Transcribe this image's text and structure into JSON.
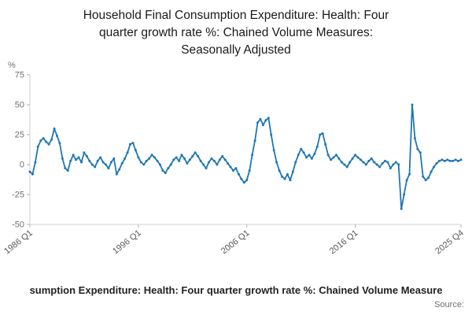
{
  "title": {
    "lines": [
      "Household Final Consumption Expenditure: Health: Four",
      "quarter growth rate %: Chained Volume Measures:",
      "Seasonally Adjusted"
    ]
  },
  "footer": {
    "text": "sumption Expenditure: Health: Four quarter growth rate %: Chained Volume Measure",
    "source_label": "Source:"
  },
  "chart_data": {
    "type": "line",
    "title": "Household Final Consumption Expenditure: Health: Four quarter growth rate %: Chained Volume Measures: Seasonally Adjusted",
    "ylabel": "%",
    "ylim": [
      -50,
      75
    ],
    "yticks": [
      75,
      50,
      25,
      0,
      -25,
      -50
    ],
    "x_start": "1986 Q1",
    "x_end": "2025 Q4",
    "frequency": "quarterly",
    "x_ticks": [
      {
        "label": "1986 Q1",
        "index": 0
      },
      {
        "label": "1996 Q1",
        "index": 40
      },
      {
        "label": "2006 Q1",
        "index": 80
      },
      {
        "label": "2016 Q1",
        "index": 120
      },
      {
        "label": "2025 Q4",
        "index": 159
      }
    ],
    "line_color": "#1f77b4",
    "marker": "circle",
    "grid": false,
    "values": [
      -6,
      -8,
      2,
      15,
      20,
      22,
      19,
      17,
      21,
      30,
      24,
      18,
      5,
      -3,
      -5,
      3,
      8,
      4,
      6,
      2,
      10,
      7,
      3,
      0,
      -2,
      3,
      6,
      2,
      0,
      -3,
      2,
      5,
      -8,
      -4,
      1,
      5,
      10,
      17,
      18,
      12,
      6,
      2,
      0,
      3,
      5,
      8,
      6,
      3,
      0,
      -5,
      -7,
      -3,
      0,
      4,
      6,
      3,
      8,
      5,
      1,
      4,
      7,
      10,
      7,
      3,
      0,
      -3,
      2,
      5,
      3,
      0,
      4,
      7,
      4,
      1,
      -2,
      -5,
      -3,
      -8,
      -12,
      -15,
      -13,
      -5,
      8,
      20,
      35,
      38,
      33,
      37,
      39,
      25,
      12,
      2,
      -5,
      -10,
      -12,
      -8,
      -13,
      -6,
      2,
      8,
      13,
      10,
      6,
      8,
      5,
      9,
      15,
      25,
      26,
      17,
      8,
      4,
      6,
      8,
      5,
      2,
      0,
      -2,
      2,
      5,
      8,
      6,
      4,
      2,
      0,
      3,
      5,
      2,
      0,
      -2,
      1,
      3,
      2,
      -3,
      0,
      2,
      0,
      -37,
      -25,
      -13,
      -8,
      50,
      22,
      13,
      10,
      -10,
      -13,
      -11,
      -6,
      -2,
      1,
      3,
      4,
      3,
      4,
      3,
      3,
      4,
      3,
      4
    ]
  }
}
